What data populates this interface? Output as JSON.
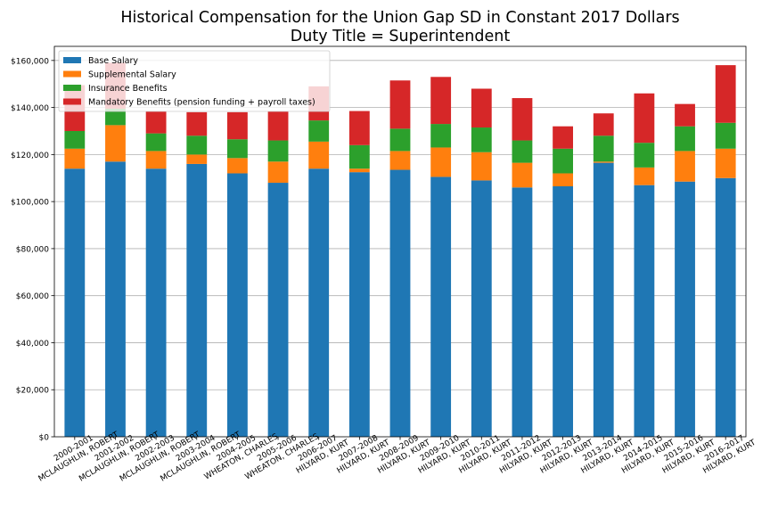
{
  "chart_data": {
    "type": "bar",
    "stacked": true,
    "title": "Historical Compensation for the Union Gap SD in Constant 2017 Dollars",
    "subtitle": "Duty Title = Superintendent",
    "xlabel": "",
    "ylabel": "",
    "ylim": [
      0,
      166000
    ],
    "yticks": [
      0,
      20000,
      40000,
      60000,
      80000,
      100000,
      120000,
      140000,
      160000
    ],
    "ytick_labels": [
      "$0",
      "$20,000",
      "$40,000",
      "$60,000",
      "$80,000",
      "$100,000",
      "$120,000",
      "$140,000",
      "$160,000"
    ],
    "grid": true,
    "legend_position": "top-left",
    "categories": [
      [
        "2000-2001",
        "MCLAUGHLIN, ROBERT"
      ],
      [
        "2001-2002",
        "MCLAUGHLIN, ROBERT"
      ],
      [
        "2002-2003",
        "MCLAUGHLIN, ROBERT"
      ],
      [
        "2003-2004",
        "MCLAUGHLIN, ROBERT"
      ],
      [
        "2004-2005",
        "WHEATON, CHARLES"
      ],
      [
        "2005-2006",
        "WHEATON, CHARLES"
      ],
      [
        "2006-2007",
        "HILYARD, KURT"
      ],
      [
        "2007-2008",
        "HILYARD, KURT"
      ],
      [
        "2008-2009",
        "HILYARD, KURT"
      ],
      [
        "2009-2010",
        "HILYARD, KURT"
      ],
      [
        "2010-2011",
        "HILYARD, KURT"
      ],
      [
        "2011-2012",
        "HILYARD, KURT"
      ],
      [
        "2012-2013",
        "HILYARD, KURT"
      ],
      [
        "2013-2014",
        "HILYARD, KURT"
      ],
      [
        "2014-2015",
        "HILYARD, KURT"
      ],
      [
        "2015-2016",
        "HILYARD, KURT"
      ],
      [
        "2016-2017",
        "HILYARD, KURT"
      ]
    ],
    "series": [
      {
        "name": "Base Salary",
        "color": "#1f77b4",
        "values": [
          114000,
          117000,
          114000,
          116000,
          112000,
          108000,
          114000,
          112500,
          113500,
          110500,
          109000,
          106000,
          106500,
          116500,
          107000,
          108500,
          110000
        ]
      },
      {
        "name": "Supplemental Salary",
        "color": "#ff7f0e",
        "values": [
          8500,
          15500,
          7500,
          4000,
          6500,
          9000,
          11500,
          1500,
          8000,
          12500,
          12000,
          10500,
          5500,
          500,
          7500,
          13000,
          12500
        ]
      },
      {
        "name": "Insurance Benefits",
        "color": "#2ca02c",
        "values": [
          7500,
          7000,
          7500,
          8000,
          8000,
          9000,
          9000,
          10000,
          9500,
          10000,
          10500,
          9500,
          10500,
          11000,
          10500,
          10500,
          11000
        ]
      },
      {
        "name": "Mandatory Benefits (pension funding + payroll taxes)",
        "color": "#d62728",
        "values": [
          19500,
          19500,
          9500,
          10000,
          11500,
          12500,
          14500,
          14500,
          20500,
          20000,
          16500,
          18000,
          9500,
          9500,
          21000,
          9500,
          24500
        ]
      }
    ]
  }
}
